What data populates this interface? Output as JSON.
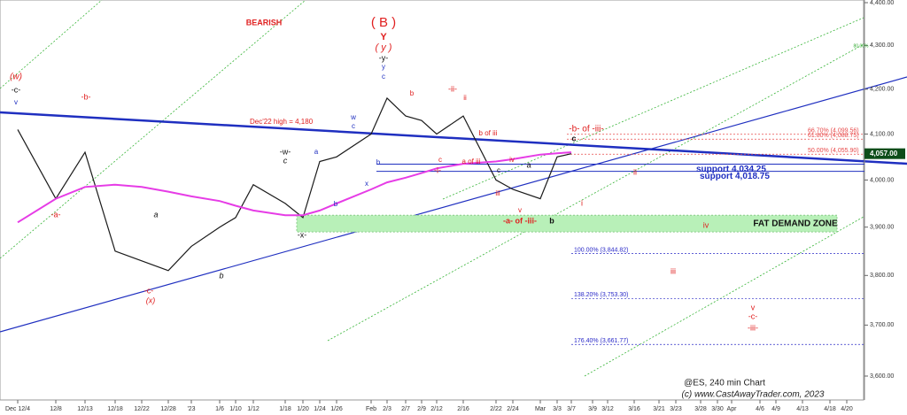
{
  "chart_data": {
    "type": "line",
    "log": true,
    "ylim": [
      3600,
      4400
    ],
    "yticks": [
      {
        "value": 3600,
        "label": "3,600.00"
      },
      {
        "value": 3700,
        "label": "3,700.00"
      },
      {
        "value": 3800,
        "label": "3,800.00"
      },
      {
        "value": 3900,
        "label": "3,900.00"
      },
      {
        "value": 4000,
        "label": "4,000.00"
      },
      {
        "value": 4100,
        "label": "4,100.00"
      },
      {
        "value": 4200,
        "label": "4,200.00"
      },
      {
        "value": 4300,
        "label": "4,300.00"
      },
      {
        "value": 4400,
        "label": "4,400.00"
      }
    ],
    "categories": [
      "Dec 12/4",
      "12/8",
      "12/13",
      "12/18",
      "12/22",
      "12/28",
      "'23",
      "1/6",
      "1/10",
      "1/12",
      "1/18",
      "1/20",
      "1/24",
      "1/26",
      "Feb",
      "2/3",
      "2/7",
      "2/9",
      "2/12",
      "2/16",
      "2/22",
      "2/24",
      "Mar",
      "3/3",
      "3/7",
      "3/9",
      "3/12",
      "3/16",
      "3/21",
      "3/23",
      "3/28",
      "3/30",
      "Apr",
      "4/6",
      "4/9",
      "4/13",
      "4/18",
      "4/20"
    ],
    "series": [
      {
        "color": "#1a1a1a",
        "values": [
          4110,
          3960,
          4060,
          3850,
          3830,
          3810,
          3860,
          3900,
          3920,
          3990,
          3950,
          3920,
          4040,
          4050,
          4100,
          4180,
          4140,
          4130,
          4100,
          4140,
          4000,
          3980,
          3960,
          4050,
          4057,
          null,
          null,
          null,
          null,
          null,
          null,
          null,
          null,
          null,
          null,
          null,
          null,
          null
        ]
      },
      {
        "color": "#e63ce6",
        "values": [
          3910,
          3960,
          3985,
          3990,
          3985,
          3975,
          3965,
          3955,
          3945,
          3935,
          3925,
          3925,
          3935,
          3950,
          3980,
          3995,
          4005,
          4015,
          4025,
          4035,
          4040,
          4045,
          4055,
          4058,
          4060,
          null,
          null,
          null,
          null,
          null,
          null,
          null,
          null,
          null,
          null,
          null,
          null,
          null
        ]
      }
    ],
    "last_price": {
      "value": 4057,
      "label": "4,057.00"
    },
    "levels": [
      {
        "value": 4099.56,
        "label": "66.70% (4,099.56)",
        "color": "#e84a4a"
      },
      {
        "value": 4088.75,
        "label": "61.80% (4,088.75)",
        "color": "#e84a4a"
      },
      {
        "value": 4055.9,
        "label": "50.00% (4,055.90)",
        "color": "#e84a4a"
      },
      {
        "value": 3844.82,
        "label": "100.00% (3,844.82)",
        "color": "#2a2ac8"
      },
      {
        "value": 3753.3,
        "label": "138.20% (3,753.30)",
        "color": "#2a2ac8"
      },
      {
        "value": 3661.77,
        "label": "176.40% (3,661.77)",
        "color": "#2a2ac8"
      }
    ],
    "supports": [
      {
        "value": 4034.25,
        "label": "support 4,034.25",
        "color": "#1f2fc0"
      },
      {
        "value": 4018.75,
        "label": "support 4,018.75",
        "color": "#1f2fc0"
      }
    ],
    "demand_zone": {
      "label": "FAT DEMAND ZONE",
      "range": [
        3890,
        3925
      ],
      "color": "#b8f0b8"
    },
    "annotations": [
      {
        "text": "BEARISH",
        "color": "#e02020"
      },
      {
        "text": "( B )",
        "color": "#e02020"
      },
      {
        "text": "Y",
        "color": "#e02020"
      },
      {
        "text": "( y )",
        "color": "#e02020"
      },
      {
        "text": "-y-",
        "color": "#111"
      },
      {
        "text": "y",
        "color": "#2030c0"
      },
      {
        "text": "c",
        "color": "#2030c0"
      },
      {
        "text": "(w)",
        "color": "#e02020"
      },
      {
        "text": "-c-",
        "color": "#111"
      },
      {
        "text": "v",
        "color": "#2030c0"
      },
      {
        "text": "-b-",
        "color": "#e02020"
      },
      {
        "text": "-a-",
        "color": "#e02020"
      },
      {
        "text": "-c-",
        "color": "#e02020"
      },
      {
        "text": "(x)",
        "color": "#e02020"
      },
      {
        "text": "a",
        "color": "#111"
      },
      {
        "text": "b",
        "color": "#111"
      },
      {
        "text": "-w-",
        "color": "#111"
      },
      {
        "text": "c",
        "color": "#111"
      },
      {
        "text": "-x-",
        "color": "#111"
      },
      {
        "text": "a",
        "color": "#2030c0"
      },
      {
        "text": "b",
        "color": "#2030c0"
      },
      {
        "text": "x",
        "color": "#2030c0"
      },
      {
        "text": "b",
        "color": "#2030c0"
      },
      {
        "text": "c",
        "color": "#2030c0"
      },
      {
        "text": "w",
        "color": "#2030c0"
      },
      {
        "text": "b",
        "color": "#e02020"
      },
      {
        "text": "-ii-",
        "color": "#e02020"
      },
      {
        "text": "ii",
        "color": "#e02020"
      },
      {
        "text": "c",
        "color": "#e02020"
      },
      {
        "text": "-i-",
        "color": "#e02020"
      },
      {
        "text": "b of iii",
        "color": "#e02020"
      },
      {
        "text": "a of iii",
        "color": "#e02020"
      },
      {
        "text": "iv",
        "color": "#e02020"
      },
      {
        "text": "a",
        "color": "#111"
      },
      {
        "text": "c",
        "color": "#111"
      },
      {
        "text": "iii",
        "color": "#e02020"
      },
      {
        "text": "v",
        "color": "#e02020"
      },
      {
        "text": "-a- of -iii-",
        "color": "#e02020"
      },
      {
        "text": "b",
        "color": "#111"
      },
      {
        "text": "-b- of -iii-",
        "color": "#e02020"
      },
      {
        "text": "c",
        "color": "#111"
      },
      {
        "text": "ii",
        "color": "#e02020"
      },
      {
        "text": "i",
        "color": "#e02020"
      },
      {
        "text": "iv",
        "color": "#e02020"
      },
      {
        "text": "iii",
        "color": "#e02020"
      },
      {
        "text": "v",
        "color": "#e02020"
      },
      {
        "text": "-c-",
        "color": "#e02020"
      },
      {
        "text": "-iii-",
        "color": "#e02020"
      },
      {
        "text": "Dec'22 high = 4,180",
        "color": "#e02020"
      },
      {
        "text": "80.00%",
        "color": "#33aa33"
      },
      {
        "text": "@ES, 240 min Chart",
        "color": "#222"
      },
      {
        "text": "(c) www.CastAwayTrader.com, 2023",
        "color": "#222"
      }
    ]
  }
}
